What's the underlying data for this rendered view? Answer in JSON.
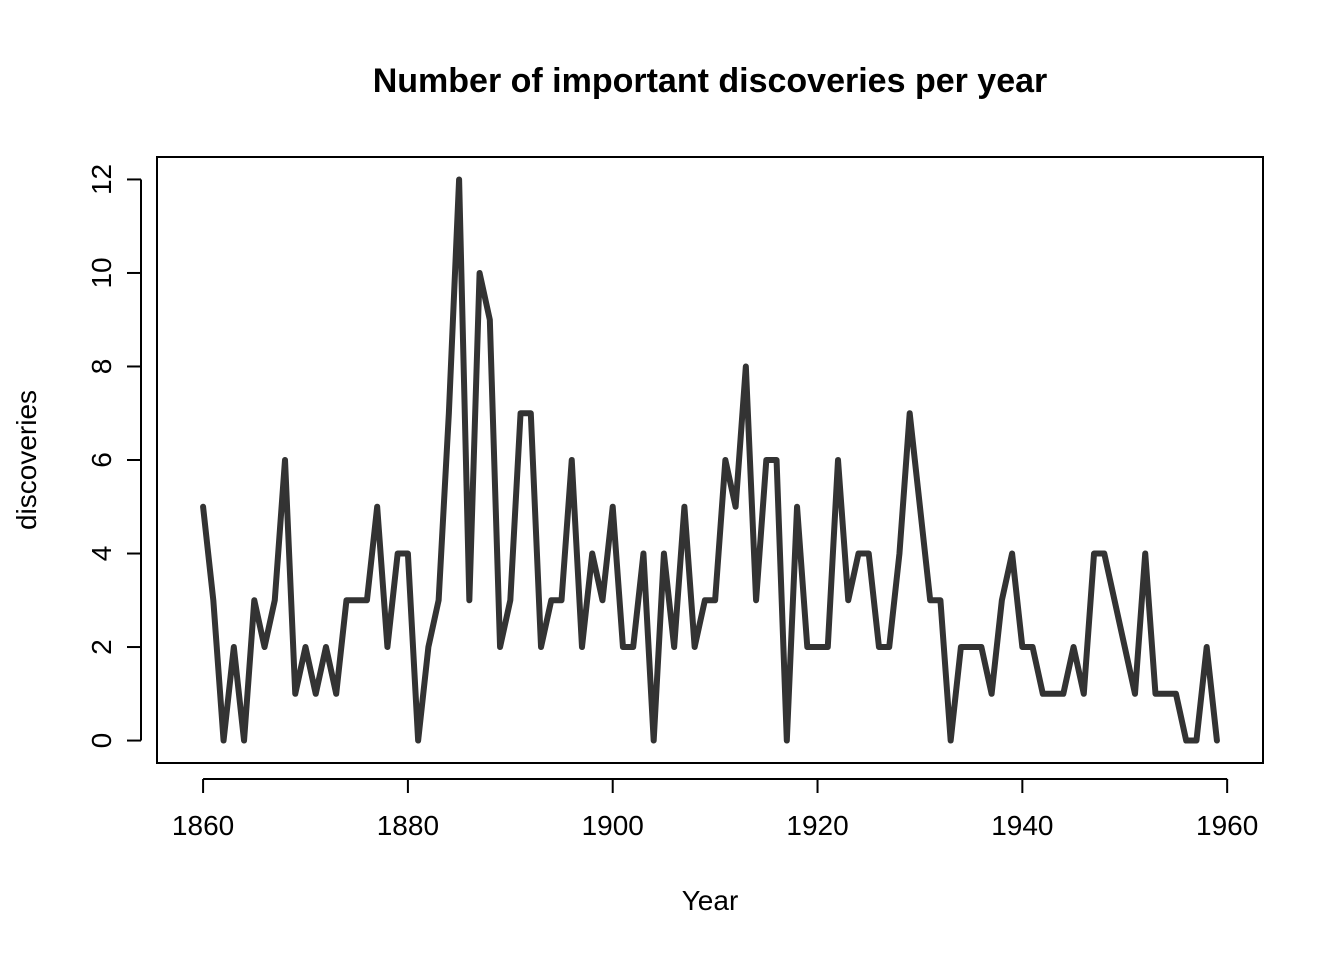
{
  "chart_data": {
    "type": "line",
    "title": "Number of important discoveries per year",
    "xlabel": "Year",
    "ylabel": "discoveries",
    "xlim": [
      1855.5,
      1963.5
    ],
    "ylim": [
      -0.48,
      12.48
    ],
    "xticks": [
      1860,
      1880,
      1900,
      1920,
      1940,
      1960
    ],
    "yticks": [
      0,
      2,
      4,
      6,
      8,
      10,
      12
    ],
    "grid": false,
    "legend": "none",
    "line_color": "#333333",
    "x_start": 1860,
    "series": [
      {
        "values": [
          5,
          3,
          0,
          2,
          0,
          3,
          2,
          3,
          6,
          1,
          2,
          1,
          2,
          1,
          3,
          3,
          3,
          5,
          2,
          4,
          4,
          0,
          2,
          3,
          7,
          12,
          3,
          10,
          9,
          2,
          3,
          7,
          7,
          2,
          3,
          3,
          6,
          2,
          4,
          3,
          5,
          2,
          2,
          4,
          0,
          4,
          2,
          5,
          2,
          3,
          3,
          6,
          5,
          8,
          3,
          6,
          6,
          0,
          5,
          2,
          2,
          2,
          6,
          3,
          4,
          4,
          2,
          2,
          4,
          7,
          5,
          3,
          3,
          0,
          2,
          2,
          2,
          1,
          3,
          4,
          2,
          2,
          1,
          1,
          1,
          2,
          1,
          4,
          4,
          3,
          2,
          1,
          4,
          1,
          1,
          1,
          0,
          0,
          2,
          0
        ]
      }
    ]
  }
}
